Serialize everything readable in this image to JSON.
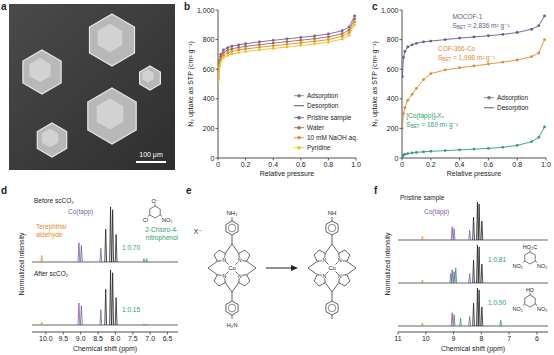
{
  "chart_data": [
    {
      "type": "image",
      "title": "a",
      "scale_bar_label": "100 μm"
    },
    {
      "type": "line",
      "title": "b",
      "x_label": "Relative pressure",
      "y_label": "N₂ uptake as STP (cm³ g⁻¹)",
      "xlim": [
        0,
        1
      ],
      "ylim": [
        0,
        1000
      ],
      "xticks": [
        0,
        0.2,
        0.4,
        0.6,
        0.8,
        {
          "value": 1,
          "label": "1.0"
        }
      ],
      "yticks": [
        0,
        200,
        400,
        600,
        800,
        {
          "value": 1000,
          "label": "1,000"
        }
      ],
      "legend": "lower right",
      "legend_items": [
        "Adsorption",
        "Desorption"
      ],
      "x": [
        0.002,
        0.01,
        0.02,
        0.04,
        0.07,
        0.1,
        0.15,
        0.2,
        0.3,
        0.4,
        0.5,
        0.6,
        0.7,
        0.8,
        0.9,
        0.95,
        0.99
      ],
      "series": [
        {
          "name": "Pristine sample",
          "color": "#7d5ba6",
          "marker": "circle",
          "values": [
            560,
            660,
            700,
            730,
            745,
            755,
            765,
            772,
            785,
            795,
            805,
            815,
            825,
            838,
            860,
            885,
            960
          ]
        },
        {
          "name": "Water",
          "color": "#a0704a",
          "marker": "circle",
          "values": [
            545,
            645,
            685,
            712,
            727,
            737,
            747,
            754,
            766,
            776,
            786,
            796,
            806,
            818,
            840,
            865,
            940
          ]
        },
        {
          "name": "10 mM NaOH aq.",
          "color": "#e8892b",
          "marker": "circle",
          "values": [
            530,
            628,
            668,
            695,
            710,
            720,
            730,
            737,
            748,
            758,
            768,
            778,
            788,
            800,
            822,
            848,
            920
          ]
        },
        {
          "name": "Pyridine",
          "color": "#f0c419",
          "marker": "circle",
          "values": [
            515,
            610,
            650,
            678,
            692,
            702,
            712,
            719,
            730,
            740,
            750,
            760,
            770,
            782,
            804,
            830,
            900
          ]
        }
      ]
    },
    {
      "type": "line",
      "title": "c",
      "x_label": "Relative pressure",
      "y_label": "N₂ uptake as STP (cm³ g⁻¹)",
      "xlim": [
        0,
        1
      ],
      "ylim": [
        0,
        1000
      ],
      "xticks": [
        0,
        0.2,
        0.4,
        0.6,
        0.8,
        {
          "value": 1,
          "label": "1.0"
        }
      ],
      "yticks": [
        0,
        200,
        400,
        600,
        800,
        {
          "value": 1000,
          "label": "1,000"
        }
      ],
      "legend": "lower right",
      "legend_items": [
        "Adsorption",
        "Desorption"
      ],
      "annotations": [
        "SBET = 2,836 m² g⁻¹",
        "SBET = 1,998 m² g⁻¹",
        "SBET = 169 m² g⁻¹"
      ],
      "x": [
        0.002,
        0.01,
        0.02,
        0.04,
        0.07,
        0.1,
        0.15,
        0.2,
        0.3,
        0.4,
        0.5,
        0.6,
        0.7,
        0.8,
        0.9,
        0.95,
        0.99
      ],
      "series": [
        {
          "name": "MOCOF-1",
          "color": "#6a5a8a",
          "marker": "circle",
          "values": [
            550,
            680,
            720,
            750,
            765,
            775,
            785,
            790,
            800,
            810,
            818,
            826,
            835,
            848,
            870,
            895,
            960
          ]
        },
        {
          "name": "COF-366-Co",
          "color": "#e08a2e",
          "marker": "circle",
          "values": [
            200,
            300,
            340,
            390,
            430,
            470,
            530,
            570,
            595,
            610,
            622,
            635,
            648,
            662,
            685,
            710,
            800
          ]
        },
        {
          "name": "[Co(tapp)]ₓXₓ",
          "color": "#2e9e6e",
          "marker": "circle",
          "values": [
            10,
            20,
            25,
            30,
            35,
            38,
            42,
            45,
            50,
            55,
            60,
            65,
            72,
            85,
            110,
            140,
            210
          ]
        }
      ]
    },
    {
      "type": "spectrum",
      "title": "d",
      "x_label": "Chemical shift (ppm)",
      "y_label": "Normalized intensity",
      "xlim": [
        10.4,
        6.2
      ],
      "ylim": [
        0,
        1
      ],
      "tick_labels": "x",
      "xticks": [
        {
          "value": 10,
          "label": "10.0"
        },
        9.5,
        {
          "value": 9,
          "label": "9.0"
        },
        8.5,
        {
          "value": 8,
          "label": "8.0"
        },
        7.5,
        {
          "value": 7,
          "label": "7.0"
        },
        6.5
      ],
      "labels": [
        {
          "text": "Terephthal aldehyde",
          "color": "#e8892b"
        },
        {
          "text": "Co(tapp)",
          "color": "#7d5ba6"
        },
        {
          "text": "2-Chloro-4-nitrophenol",
          "color": "#2e9e6e"
        }
      ],
      "molecules": [
        {
          "labels": [
            "O⁻",
            "Cl",
            "NO₂"
          ]
        }
      ],
      "series": [
        {
          "name": "Before scCO₂",
          "annotation": "1:0.70",
          "x": [
            10.12,
            9.05,
            8.98,
            8.42,
            8.28,
            8.14,
            8.08,
            7.98,
            7.18,
            7.1
          ],
          "values": [
            0.12,
            0.35,
            0.3,
            0.25,
            0.6,
            1.0,
            0.95,
            0.5,
            0.06,
            0.06
          ],
          "colors": [
            "#e8892b",
            "#7d5ba6",
            "#7d5ba6",
            "#7d5ba6",
            "#222222",
            "#222222",
            "#222222",
            "#222222",
            "#2e9e6e",
            "#2e9e6e"
          ]
        },
        {
          "name": "After scCO₂",
          "annotation": "1:0.15",
          "x": [
            10.12,
            9.05,
            8.98,
            8.42,
            8.28,
            8.14,
            8.08,
            7.98,
            7.18,
            7.1
          ],
          "values": [
            0.05,
            0.4,
            0.35,
            0.28,
            0.65,
            1.0,
            0.95,
            0.5,
            0.015,
            0.015
          ],
          "colors": [
            "#e8892b",
            "#7d5ba6",
            "#7d5ba6",
            "#7d5ba6",
            "#222222",
            "#222222",
            "#222222",
            "#222222",
            "#2e9e6e",
            "#2e9e6e"
          ]
        }
      ]
    },
    {
      "type": "diagram",
      "title": "e",
      "labels": {
        "anion": "X⁻",
        "metal": "Co",
        "nitrogen": "N",
        "amine_top": "NH₂",
        "amine_bottom": "H₂N",
        "imine": "NH"
      }
    },
    {
      "type": "spectrum",
      "title": "f",
      "x_label": "Chemical shift (ppm)",
      "y_label": "Normalized intensity",
      "xlim": [
        11,
        5.6
      ],
      "ylim": [
        0,
        1
      ],
      "tick_labels": "x",
      "xticks": [
        11,
        10,
        9,
        8,
        7,
        6
      ],
      "labels": [
        {
          "text": "Co(tapp)",
          "color": "#7d5ba6"
        }
      ],
      "molecules": [
        {
          "labels": [
            "HO₂C",
            "NO₂",
            "NO₂"
          ]
        },
        {
          "labels": [
            "HO",
            "NO₂",
            "NO₂"
          ]
        }
      ],
      "series": [
        {
          "name": "Pristine sample",
          "x": [
            10.12,
            9.05,
            8.98,
            8.42,
            8.28,
            8.14,
            8.08,
            7.98
          ],
          "values": [
            0.1,
            0.35,
            0.3,
            0.25,
            0.6,
            1.0,
            0.95,
            0.5
          ],
          "colors": [
            "#e8892b",
            "#7d5ba6",
            "#7d5ba6",
            "#7d5ba6",
            "#222222",
            "#222222",
            "#222222",
            "#222222"
          ]
        },
        {
          "annotation": "1:0.81",
          "x": [
            10.12,
            9.1,
            9.05,
            8.98,
            8.92,
            8.42,
            8.28,
            8.14,
            8.08,
            7.98
          ],
          "values": [
            0.08,
            0.25,
            0.35,
            0.3,
            0.4,
            0.25,
            0.6,
            1.0,
            0.95,
            0.5
          ],
          "colors": [
            "#e8892b",
            "#2e9e6e",
            "#7d5ba6",
            "#7d5ba6",
            "#2e9e6e",
            "#7d5ba6",
            "#222222",
            "#222222",
            "#222222",
            "#222222"
          ]
        },
        {
          "annotation": "1:0.90",
          "x": [
            10.12,
            9.05,
            8.98,
            8.75,
            8.42,
            8.28,
            8.14,
            8.08,
            7.98,
            7.3
          ],
          "values": [
            0.08,
            0.35,
            0.3,
            0.2,
            0.25,
            0.6,
            1.0,
            0.95,
            0.5,
            0.15
          ],
          "colors": [
            "#e8892b",
            "#7d5ba6",
            "#7d5ba6",
            "#2e9e6e",
            "#7d5ba6",
            "#222222",
            "#222222",
            "#222222",
            "#222222",
            "#2e9e6e"
          ]
        }
      ]
    }
  ]
}
